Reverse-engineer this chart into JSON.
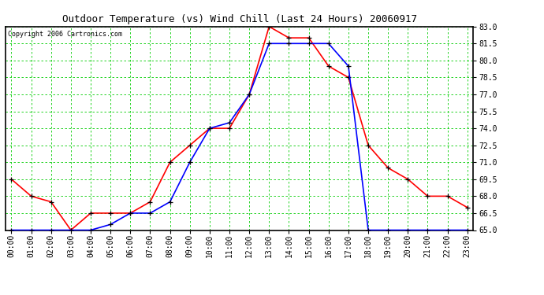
{
  "title": "Outdoor Temperature (vs) Wind Chill (Last 24 Hours) 20060917",
  "copyright": "Copyright 2006 Cartronics.com",
  "hours": [
    0,
    1,
    2,
    3,
    4,
    5,
    6,
    7,
    8,
    9,
    10,
    11,
    12,
    13,
    14,
    15,
    16,
    17,
    18,
    19,
    20,
    21,
    22,
    23
  ],
  "temp": [
    69.5,
    68.0,
    67.5,
    65.0,
    66.5,
    66.5,
    66.5,
    67.5,
    71.0,
    72.5,
    74.0,
    74.0,
    77.0,
    83.0,
    82.0,
    82.0,
    79.5,
    78.5,
    72.5,
    70.5,
    69.5,
    68.0,
    68.0,
    67.0
  ],
  "windchill": [
    65.0,
    65.0,
    65.0,
    65.0,
    65.0,
    65.5,
    66.5,
    66.5,
    67.5,
    71.0,
    74.0,
    74.5,
    77.0,
    81.5,
    81.5,
    81.5,
    81.5,
    79.5,
    65.0,
    65.0,
    65.0,
    65.0,
    65.0,
    65.0
  ],
  "ylim_min": 65.0,
  "ylim_max": 83.0,
  "yticks": [
    65.0,
    66.5,
    68.0,
    69.5,
    71.0,
    72.5,
    74.0,
    75.5,
    77.0,
    78.5,
    80.0,
    81.5,
    83.0
  ],
  "bg_color": "#ffffff",
  "plot_bg_color": "#ffffff",
  "grid_color": "#00cc00",
  "temp_color": "#ff0000",
  "windchill_color": "#0000ff",
  "border_color": "#000000",
  "title_color": "#000000",
  "copyright_color": "#000000",
  "title_fontsize": 9,
  "tick_fontsize": 7,
  "copyright_fontsize": 6,
  "linewidth": 1.2,
  "markersize": 5
}
